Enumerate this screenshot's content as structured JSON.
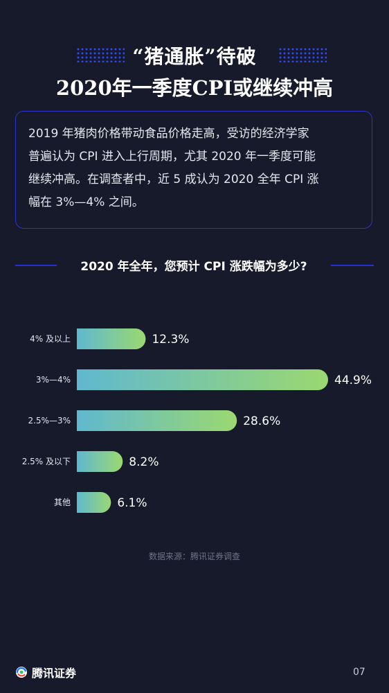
{
  "title": {
    "line1": "“猪通胀”待破",
    "line2": "2020年一季度CPI或继续冲高"
  },
  "intro": {
    "lines": [
      "2019  年猪肉价格带动食品价格走高，受访的经济学家",
      "普遍认为 CPI 进入上行周期，尤其 2020 年一季度可能",
      "继续冲高。在调查者中，近 5 成认为 2020 全年 CPI 涨",
      "幅在 3%—4% 之间。"
    ]
  },
  "chart_data": {
    "type": "bar",
    "orientation": "horizontal",
    "title": "2020 年全年，您预计 CPI 涨跌幅为多少?",
    "categories": [
      "4% 及以上",
      "3%—4%",
      "2.5%—3%",
      "2.5% 及以下",
      "其他"
    ],
    "values": [
      12.3,
      44.9,
      28.6,
      8.2,
      6.1
    ],
    "value_labels": [
      "12.3%",
      "44.9%",
      "28.6%",
      "8.2%",
      "6.1%"
    ],
    "unit": "%",
    "xlim": [
      0,
      44.9
    ],
    "grid": false,
    "colors": {
      "bar_start": "#5fb8cf",
      "bar_end": "#9bd870"
    }
  },
  "source": "数据来源：腾讯证券调查",
  "footer": {
    "brand": "腾讯证券",
    "page": "07"
  },
  "colors": {
    "background": "#171a2a",
    "accent_blue": "#2b35c9"
  }
}
